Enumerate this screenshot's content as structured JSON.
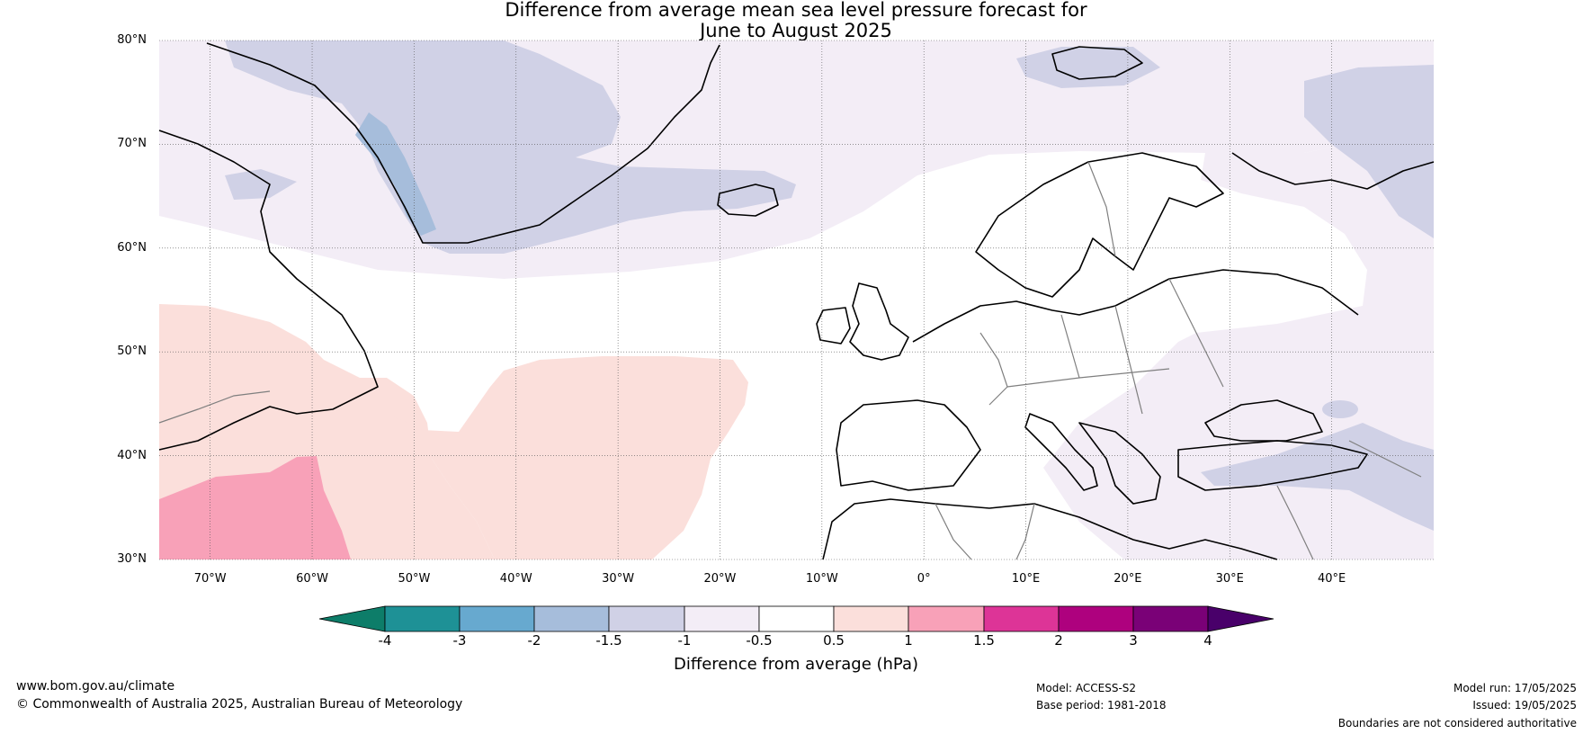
{
  "title": {
    "line1": "Difference from average mean sea level pressure forecast for",
    "line2": "June to August 2025"
  },
  "map": {
    "lat_range": [
      30,
      80
    ],
    "lon_range": [
      -75,
      50
    ],
    "lat_ticks": [
      "80°N",
      "70°N",
      "60°N",
      "50°N",
      "40°N",
      "30°N"
    ],
    "lon_ticks": [
      "70°W",
      "60°W",
      "50°W",
      "40°W",
      "30°W",
      "20°W",
      "10°W",
      "0°",
      "10°E",
      "20°E",
      "30°E",
      "40°E"
    ],
    "gridlines": "dotted",
    "anomaly_regions": [
      {
        "category": "-1 to -0.5",
        "color": "#f3edf6"
      },
      {
        "category": "-1.5 to -1",
        "color": "#d0d1e6"
      },
      {
        "category": "-2 to -1.5",
        "color": "#a6bddb"
      },
      {
        "category": "0.5 to 1",
        "color": "#fbdfdb"
      },
      {
        "category": "1 to 1.5",
        "color": "#f8a1b8"
      }
    ]
  },
  "colorbar": {
    "title": "Difference from average (hPa)",
    "ticks": [
      "-4",
      "-3",
      "-2",
      "-1.5",
      "-1",
      "-0.5",
      "0.5",
      "1",
      "1.5",
      "2",
      "3",
      "4"
    ],
    "colors": [
      "#0d7d69",
      "#1e9196",
      "#67a9cf",
      "#a6bddb",
      "#d0d1e6",
      "#f3edf6",
      "#ffffff",
      "#fbdfdb",
      "#f8a1b8",
      "#dd3497",
      "#ae017e",
      "#7a0177",
      "#49006a"
    ]
  },
  "footer": {
    "website": "www.bom.gov.au/climate",
    "copyright": "© Commonwealth of Australia 2025, Australian Bureau of Meteorology",
    "model": "Model: ACCESS-S2",
    "base_period": "Base period: 1981-2018",
    "model_run": "Model run: 17/05/2025",
    "issued": "Issued: 19/05/2025",
    "disclaimer": "Boundaries are not considered authoritative"
  }
}
